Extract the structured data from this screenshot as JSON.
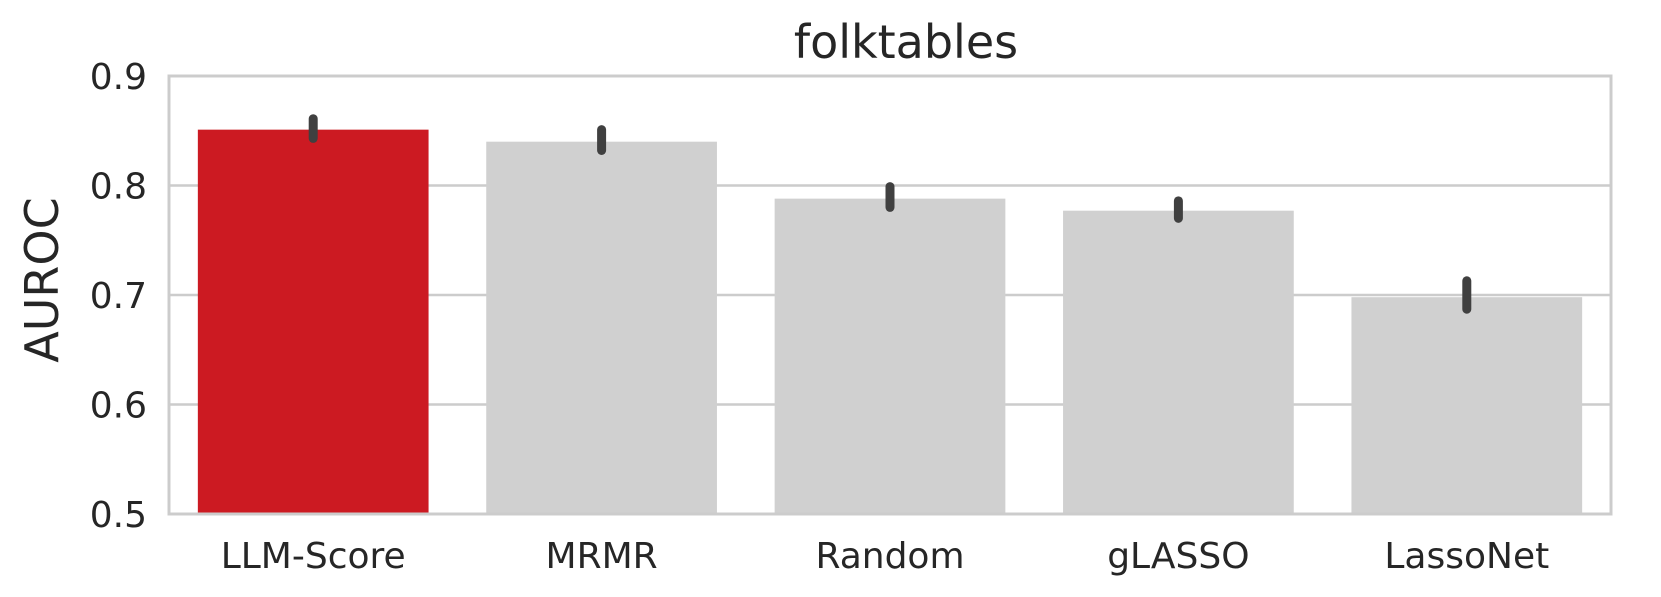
{
  "chart_data": {
    "type": "bar",
    "title": "folktables",
    "xlabel": "",
    "ylabel": "AUROC",
    "categories": [
      "LLM-Score",
      "MRMR",
      "Random",
      "gLASSO",
      "LassoNet"
    ],
    "values": [
      0.851,
      0.84,
      0.788,
      0.777,
      0.698
    ],
    "error_low": [
      0.843,
      0.832,
      0.78,
      0.77,
      0.687
    ],
    "error_high": [
      0.861,
      0.851,
      0.799,
      0.786,
      0.713
    ],
    "ylim": [
      0.5,
      0.9
    ],
    "yticks": [
      "0.5",
      "0.6",
      "0.7",
      "0.8",
      "0.9"
    ],
    "grid": "horizontal",
    "colors": {
      "highlight": "#cc1a22",
      "default": "#d0d0d0",
      "errorbar": "#404040"
    },
    "highlight_index": 0
  }
}
